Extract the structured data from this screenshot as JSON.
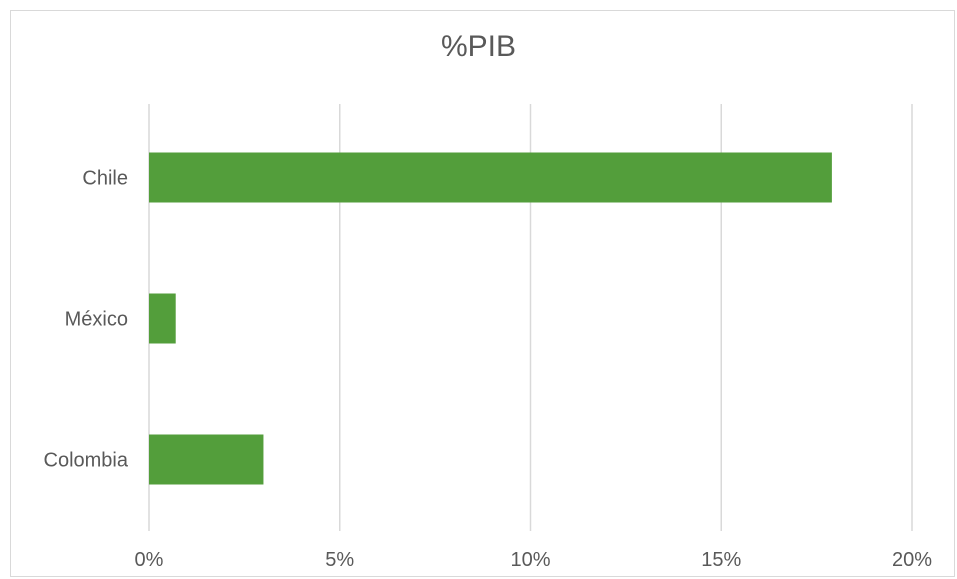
{
  "chart_data": {
    "type": "bar",
    "orientation": "horizontal",
    "title": "%PIB",
    "categories": [
      "Chile",
      "México",
      "Colombia"
    ],
    "values": [
      17.9,
      0.7,
      3.0
    ],
    "value_unit": "%",
    "xlim": [
      0,
      20
    ],
    "xticks": [
      0,
      5,
      10,
      15,
      20
    ],
    "xtick_labels": [
      "0%",
      "5%",
      "10%",
      "15%",
      "20%"
    ],
    "xlabel": "",
    "ylabel": "",
    "grid": "vertical",
    "legend": "none",
    "bar_color": "#539E3B",
    "grid_color": "#d9d9d9",
    "text_color": "#595959"
  }
}
